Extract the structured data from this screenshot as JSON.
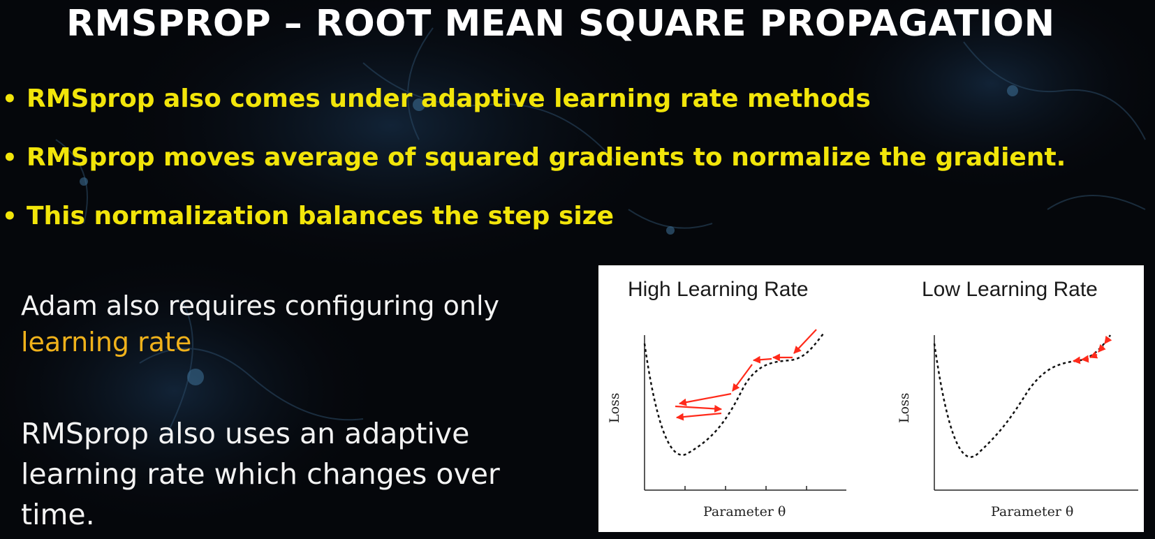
{
  "slide": {
    "title": "RMSPROP – ROOT MEAN SQUARE PROPAGATION",
    "bullet_symbol": "•",
    "bullets": [
      "RMSprop also comes under adaptive learning rate methods",
      "RMSprop moves average of squared gradients to normalize the gradient.",
      "This normalization balances the step size"
    ],
    "note1_text": "Adam also requires configuring only",
    "note1_highlight": "learning rate",
    "note2_text": "RMSprop also uses an adaptive learning rate which changes over time.",
    "colors": {
      "bullet_text": "#f2e50a",
      "highlight": "#f0b21b",
      "arrows": "#ff2a1a",
      "curve": "#111111"
    }
  },
  "figure": {
    "panels": [
      {
        "title": "High Learning Rate",
        "xlabel": "Parameter θ",
        "ylabel": "Loss",
        "arrow_steps": 8,
        "behavior": "oscillating"
      },
      {
        "title": "Low Learning Rate",
        "xlabel": "Parameter θ",
        "ylabel": "Loss",
        "arrow_steps": 5,
        "behavior": "small-steps"
      }
    ]
  }
}
